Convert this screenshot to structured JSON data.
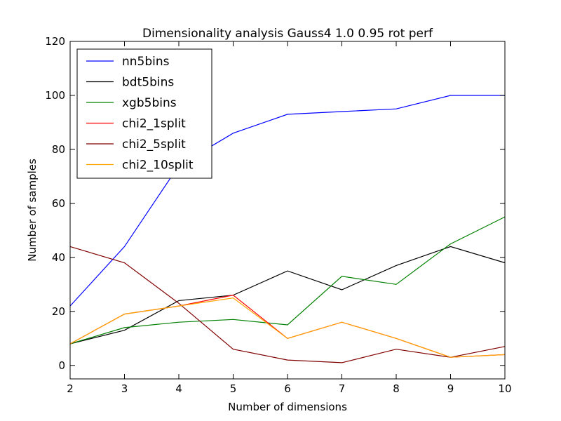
{
  "chart_data": {
    "type": "line",
    "title": "Dimensionality analysis Gauss4 1.0 0.95 rot perf",
    "xlabel": "Number of dimensions",
    "ylabel": "Number of samples",
    "x": [
      2,
      3,
      4,
      5,
      6,
      7,
      8,
      9,
      10
    ],
    "xlim": [
      2,
      10
    ],
    "ylim": [
      -5,
      120
    ],
    "xticks": [
      2,
      3,
      4,
      5,
      6,
      7,
      8,
      9,
      10
    ],
    "yticks": [
      0,
      20,
      40,
      60,
      80,
      100,
      120
    ],
    "grid": false,
    "legend_position": "top-left",
    "series": [
      {
        "name": "nn5bins",
        "color": "#0000ff",
        "values": [
          22,
          44,
          74,
          86,
          93,
          94,
          95,
          100,
          100
        ]
      },
      {
        "name": "bdt5bins",
        "color": "#000000",
        "values": [
          8,
          13,
          24,
          26,
          35,
          28,
          37,
          44,
          38
        ]
      },
      {
        "name": "xgb5bins",
        "color": "#008000",
        "values": [
          8,
          14,
          16,
          17,
          15,
          33,
          30,
          45,
          55
        ]
      },
      {
        "name": "chi2_1split",
        "color": "#ff0000",
        "values": [
          8,
          19,
          22,
          26,
          10,
          16,
          10,
          3,
          4
        ]
      },
      {
        "name": "chi2_5split",
        "color": "#800000",
        "values": [
          44,
          38,
          23,
          6,
          2,
          1,
          6,
          3,
          7
        ]
      },
      {
        "name": "chi2_10split",
        "color": "#ffa500",
        "values": [
          8,
          19,
          22,
          25,
          10,
          16,
          10,
          3,
          4
        ]
      }
    ]
  }
}
